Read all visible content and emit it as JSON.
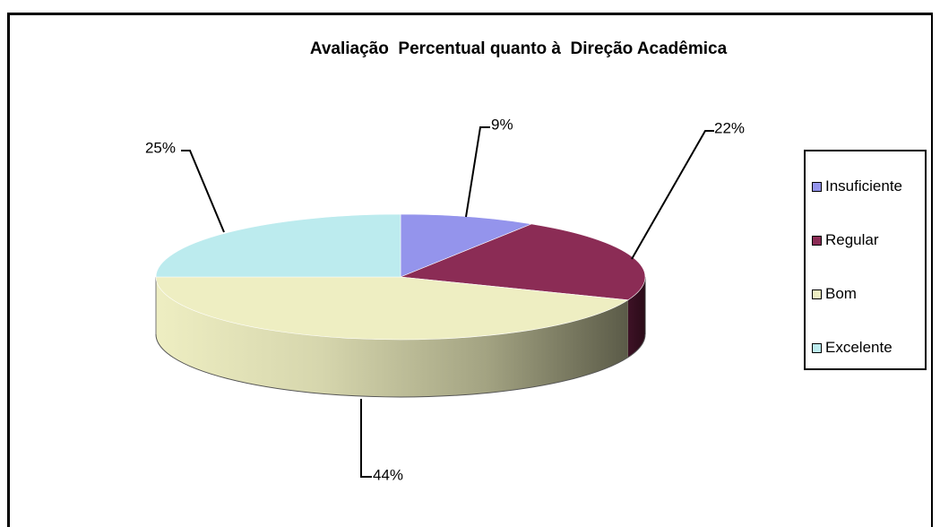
{
  "chart_data": {
    "type": "pie",
    "title": "Avaliação  Percentual quanto à  Direção Acadêmica",
    "legend_position": "right",
    "slices": [
      {
        "name": "Insuficiente",
        "value": 9,
        "label": "9%",
        "color": "#9494ec"
      },
      {
        "name": "Regular",
        "value": 22,
        "label": "22%",
        "color": "#8b2c55"
      },
      {
        "name": "Bom",
        "value": 44,
        "label": "44%",
        "color": "#eeeec2"
      },
      {
        "name": "Excelente",
        "value": 25,
        "label": "25%",
        "color": "#bcebee"
      }
    ]
  }
}
